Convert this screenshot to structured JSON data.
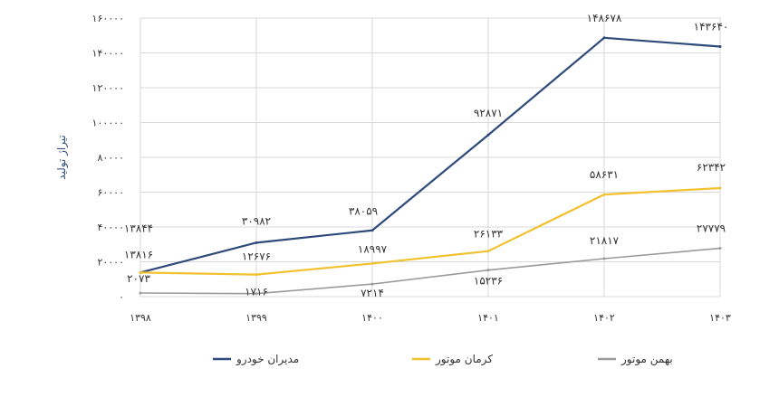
{
  "chart_data": {
    "type": "line",
    "ylabel": "تیراژ تولید",
    "x": [
      "۱۳۹۸",
      "۱۳۹۹",
      "۱۴۰۰",
      "۱۴۰۱",
      "۱۴۰۲",
      "۱۴۰۳"
    ],
    "ylim": [
      0,
      160000
    ],
    "y_ticks": [
      0,
      20000,
      40000,
      60000,
      80000,
      100000,
      120000,
      140000,
      160000
    ],
    "y_tick_labels": [
      "۰",
      "۲۰۰۰۰",
      "۴۰۰۰۰",
      "۶۰۰۰۰",
      "۸۰۰۰۰",
      "۱۰۰۰۰۰",
      "۱۲۰۰۰۰",
      "۱۴۰۰۰۰",
      "۱۶۰۰۰۰"
    ],
    "grid": true,
    "legend_position": "bottom",
    "series": [
      {
        "name": "مدیران خودرو",
        "color": "#2e4a7a",
        "values": [
          13844,
          30982,
          38059,
          92871,
          148678,
          143640
        ],
        "labels": [
          "۱۳۸۴۴",
          "۳۰۹۸۲",
          "۳۸۰۵۹",
          "۹۲۸۷۱",
          "۱۴۸۶۷۸",
          "۱۴۳۶۴۰"
        ]
      },
      {
        "name": "کرمان موتور",
        "color": "#f2c12e",
        "values": [
          13816,
          12676,
          18997,
          26133,
          58631,
          62342
        ],
        "labels": [
          "۱۳۸۱۶",
          "۱۲۶۷۶",
          "۱۸۹۹۷",
          "۲۶۱۳۳",
          "۵۸۶۳۱",
          "۶۲۳۴۲"
        ]
      },
      {
        "name": "بهمن موتور",
        "color": "#9a9a9a",
        "values": [
          2073,
          1716,
          7214,
          15236,
          21817,
          27779
        ],
        "labels": [
          "۲۰۷۳",
          "۱۷۱۶",
          "۷۲۱۴",
          "۱۵۲۳۶",
          "۲۱۸۱۷",
          "۲۷۷۷۹"
        ]
      }
    ]
  }
}
